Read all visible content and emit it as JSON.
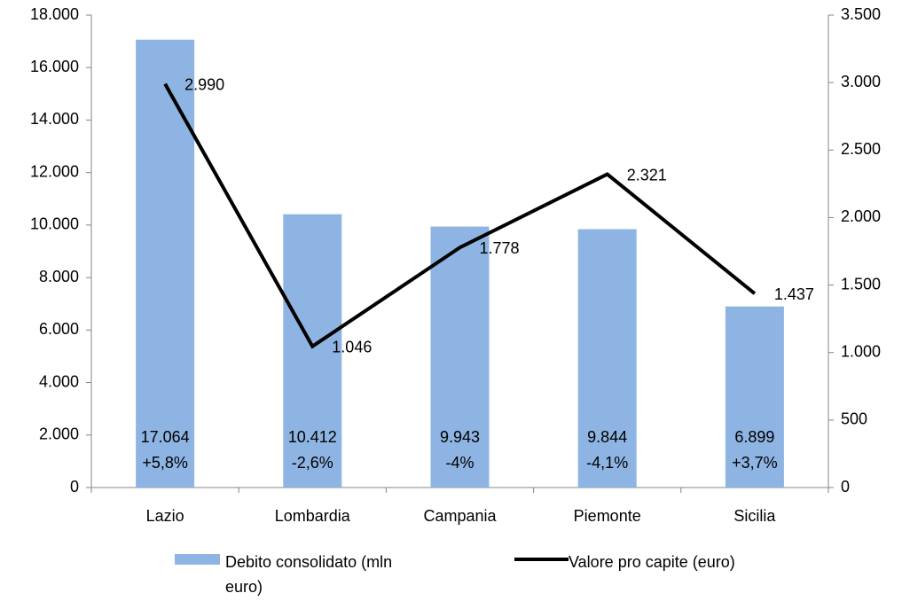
{
  "chart_data": {
    "type": "bar+line",
    "categories": [
      "Lazio",
      "Lombardia",
      "Campania",
      "Piemonte",
      "Sicilia"
    ],
    "series": [
      {
        "name": "Debito consolidato (mln euro)",
        "type": "bar",
        "color": "#8eb4e3",
        "values": [
          17064,
          10412,
          9943,
          9844,
          6899
        ],
        "value_labels": [
          "17.064",
          "10.412",
          "9.943",
          "9.844",
          "6.899"
        ],
        "change_labels": [
          "+5,8%",
          "-2,6%",
          "-4%",
          "-4,1%",
          "+3,7%"
        ]
      },
      {
        "name": "Valore pro capite (euro)",
        "type": "line",
        "color": "#000000",
        "axis": "y2",
        "values": [
          2990,
          1046,
          1778,
          2321,
          1437
        ],
        "value_labels": [
          "2.990",
          "1.046",
          "1.778",
          "2.321",
          "1.437"
        ]
      }
    ],
    "ylim": [
      0,
      18000
    ],
    "yticks": [
      0,
      {
        "value": 2000,
        "label": "2.000"
      },
      {
        "value": 4000,
        "label": "4.000"
      },
      {
        "value": 6000,
        "label": "6.000"
      },
      {
        "value": 8000,
        "label": "8.000"
      },
      {
        "value": 10000,
        "label": "10.000"
      },
      {
        "value": 12000,
        "label": "12.000"
      },
      {
        "value": 14000,
        "label": "14.000"
      },
      {
        "value": 16000,
        "label": "16.000"
      },
      {
        "value": 18000,
        "label": "18.000"
      }
    ],
    "y2lim": [
      0,
      3500
    ],
    "y2ticks": [
      0,
      500,
      {
        "value": 1000,
        "label": "1.000"
      },
      {
        "value": 1500,
        "label": "1.500"
      },
      {
        "value": 2000,
        "label": "2.000"
      },
      {
        "value": 2500,
        "label": "2.500"
      },
      {
        "value": 3000,
        "label": "3.000"
      },
      {
        "value": 3500,
        "label": "3.500"
      }
    ],
    "grid": false,
    "legend": "bottom"
  }
}
